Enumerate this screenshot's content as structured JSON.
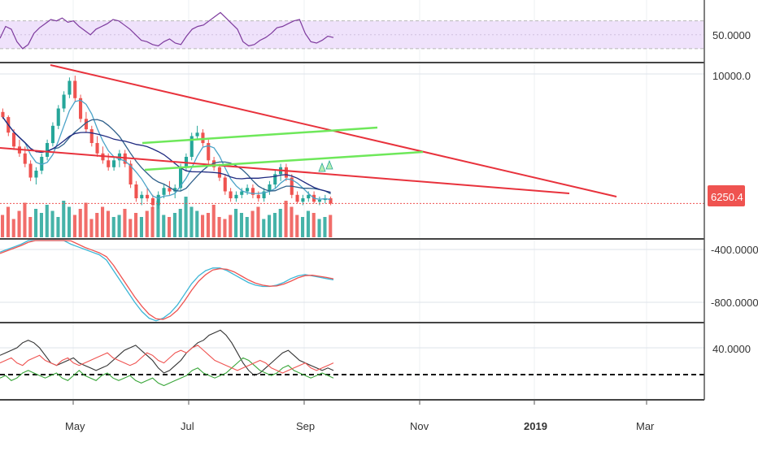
{
  "colors": {
    "bull": "#26a69a",
    "bear": "#ef5350",
    "trend_red": "#e8323c",
    "channel_green": "#6ee85a",
    "rsi_line": "#7e3b9e",
    "rsi_band": "#efe2fb",
    "ma_fast": "#4aa3c8",
    "ma_mid": "#2d5f8a",
    "ma_slow": "#1f2a80",
    "macd": "#3cb6d6",
    "signal": "#ef5350",
    "dmi_adx": "#333333",
    "dmi_plus": "#3aa63a",
    "dmi_minus": "#ef5350",
    "price_tag": "#ef5350"
  },
  "x_axis": {
    "labels": [
      "May",
      "Jul",
      "Sep",
      "Nov",
      "2019",
      "Mar"
    ]
  },
  "price_tag": "6250.4",
  "chart_data": [
    {
      "type": "line",
      "panel": "rsi",
      "y_tick_labels": [
        "50.0000"
      ],
      "band": [
        30,
        70
      ],
      "series": [
        {
          "values": [
            45,
            62,
            58,
            40,
            30,
            36,
            52,
            60,
            66,
            72,
            70,
            74,
            68,
            70,
            62,
            56,
            50,
            58,
            62,
            66,
            72,
            70,
            64,
            58,
            50,
            42,
            40,
            36,
            34,
            40,
            44,
            38,
            36,
            48,
            58,
            62,
            64,
            70,
            76,
            82,
            74,
            66,
            58,
            40,
            34,
            36,
            42,
            46,
            52,
            60,
            62,
            66,
            70,
            72,
            52,
            40,
            38,
            42,
            48,
            46
          ]
        }
      ]
    },
    {
      "type": "candlestick",
      "panel": "price",
      "y_tick_labels": [
        "10000.0"
      ],
      "last_price": "6250.4",
      "ohlc": [
        [
          8900,
          9000,
          8700,
          8750
        ],
        [
          8750,
          8800,
          8200,
          8300
        ],
        [
          8300,
          8400,
          7800,
          7900
        ],
        [
          7900,
          8100,
          7600,
          7700
        ],
        [
          7700,
          7900,
          7300,
          7400
        ],
        [
          7400,
          7500,
          6900,
          7000
        ],
        [
          7000,
          7300,
          6800,
          7200
        ],
        [
          7200,
          7700,
          7100,
          7600
        ],
        [
          7600,
          8100,
          7500,
          8000
        ],
        [
          8000,
          8600,
          7900,
          8500
        ],
        [
          8500,
          9100,
          8400,
          9000
        ],
        [
          9000,
          9500,
          8900,
          9400
        ],
        [
          9400,
          9900,
          9300,
          9800
        ],
        [
          9800,
          9950,
          9200,
          9300
        ],
        [
          9300,
          9400,
          8600,
          8700
        ],
        [
          8700,
          8900,
          8300,
          8400
        ],
        [
          8400,
          8500,
          7900,
          8000
        ],
        [
          8000,
          8200,
          7600,
          7700
        ],
        [
          7700,
          7900,
          7400,
          7500
        ],
        [
          7500,
          7700,
          7200,
          7300
        ],
        [
          7300,
          7600,
          7200,
          7500
        ],
        [
          7500,
          7800,
          7300,
          7700
        ],
        [
          7700,
          7800,
          7300,
          7400
        ],
        [
          7400,
          7500,
          6700,
          6800
        ],
        [
          6800,
          6900,
          6300,
          6400
        ],
        [
          6400,
          6600,
          6200,
          6500
        ],
        [
          6500,
          6700,
          6300,
          6400
        ],
        [
          6400,
          6500,
          6100,
          6200
        ],
        [
          6200,
          6600,
          6100,
          6500
        ],
        [
          6500,
          6800,
          6400,
          6700
        ],
        [
          6700,
          6900,
          6500,
          6600
        ],
        [
          6600,
          6800,
          6400,
          6700
        ],
        [
          6700,
          7400,
          6600,
          7300
        ],
        [
          7300,
          7700,
          7200,
          7600
        ],
        [
          7600,
          8300,
          7500,
          8200
        ],
        [
          8200,
          8500,
          8100,
          8300
        ],
        [
          8300,
          8400,
          7900,
          8000
        ],
        [
          8000,
          8100,
          7400,
          7500
        ],
        [
          7500,
          7600,
          7200,
          7300
        ],
        [
          7300,
          7400,
          6900,
          7000
        ],
        [
          7000,
          7100,
          6500,
          6600
        ],
        [
          6600,
          6700,
          6300,
          6400
        ],
        [
          6400,
          6600,
          6300,
          6500
        ],
        [
          6500,
          6700,
          6400,
          6600
        ],
        [
          6600,
          6800,
          6500,
          6700
        ],
        [
          6700,
          6800,
          6400,
          6500
        ],
        [
          6500,
          6600,
          6300,
          6400
        ],
        [
          6400,
          6700,
          6300,
          6600
        ],
        [
          6600,
          6900,
          6500,
          6800
        ],
        [
          6800,
          7200,
          6700,
          7100
        ],
        [
          7100,
          7400,
          6900,
          7300
        ],
        [
          7300,
          7400,
          6900,
          7000
        ],
        [
          7000,
          7100,
          6400,
          6500
        ],
        [
          6500,
          6600,
          6250,
          6300
        ],
        [
          6300,
          6500,
          6200,
          6400
        ],
        [
          6400,
          6600,
          6300,
          6500
        ],
        [
          6500,
          6600,
          6250,
          6300
        ],
        [
          6300,
          6450,
          6200,
          6350
        ],
        [
          6350,
          6500,
          6250,
          6400
        ],
        [
          6400,
          6450,
          6200,
          6250
        ]
      ],
      "volume": [
        22,
        30,
        18,
        26,
        34,
        20,
        28,
        24,
        32,
        26,
        20,
        36,
        30,
        22,
        28,
        34,
        18,
        24,
        30,
        26,
        20,
        22,
        28,
        18,
        24,
        20,
        26,
        30,
        36,
        22,
        20,
        24,
        28,
        40,
        30,
        26,
        22,
        24,
        32,
        20,
        18,
        22,
        28,
        24,
        20,
        26,
        30,
        18,
        22,
        24,
        28,
        36,
        30,
        22,
        20,
        26,
        24,
        18,
        20,
        22
      ]
    },
    {
      "type": "line",
      "panel": "macd",
      "y_tick_labels": [
        "-400.0000",
        "-800.0000"
      ],
      "series": [
        {
          "values": [
            -420,
            -400,
            -380,
            -360,
            -330,
            -310,
            -300,
            -300,
            -310,
            -330,
            -360,
            -380,
            -400,
            -420,
            -440,
            -480,
            -560,
            -640,
            -720,
            -800,
            -870,
            -920,
            -940,
            -920,
            -880,
            -820,
            -740,
            -660,
            -600,
            -560,
            -540,
            -540,
            -560,
            -590,
            -620,
            -650,
            -670,
            -680,
            -680,
            -670,
            -650,
            -620,
            -600,
            -590,
            -600,
            -610,
            -620,
            -630
          ]
        },
        {
          "values": [
            -430,
            -410,
            -390,
            -370,
            -345,
            -325,
            -310,
            -305,
            -305,
            -315,
            -335,
            -360,
            -385,
            -405,
            -425,
            -455,
            -520,
            -600,
            -680,
            -760,
            -830,
            -890,
            -925,
            -930,
            -905,
            -860,
            -790,
            -710,
            -640,
            -590,
            -555,
            -545,
            -550,
            -570,
            -600,
            -630,
            -655,
            -670,
            -678,
            -676,
            -662,
            -640,
            -615,
            -598,
            -595,
            -603,
            -612,
            -622
          ]
        }
      ]
    },
    {
      "type": "line",
      "panel": "dmi",
      "y_tick_labels": [
        "40.0000"
      ],
      "series": [
        {
          "values": [
            34,
            36,
            38,
            40,
            44,
            46,
            44,
            40,
            34,
            28,
            26,
            28,
            30,
            32,
            28,
            26,
            24,
            22,
            24,
            26,
            30,
            34,
            38,
            40,
            42,
            38,
            34,
            30,
            24,
            20,
            22,
            26,
            30,
            36,
            40,
            44,
            46,
            50,
            52,
            54,
            50,
            44,
            36,
            28,
            22,
            18,
            20,
            24,
            28,
            32,
            36,
            38,
            34,
            30,
            28,
            26,
            24,
            22,
            24,
            22
          ]
        },
        {
          "values": [
            16,
            18,
            14,
            16,
            20,
            22,
            20,
            18,
            16,
            18,
            20,
            16,
            14,
            18,
            22,
            18,
            16,
            14,
            18,
            20,
            16,
            14,
            16,
            18,
            14,
            12,
            14,
            16,
            12,
            10,
            12,
            14,
            16,
            18,
            22,
            24,
            20,
            18,
            16,
            18,
            20,
            24,
            28,
            32,
            30,
            26,
            22,
            20,
            18,
            20,
            24,
            26,
            22,
            20,
            18,
            16,
            18,
            20,
            18,
            16
          ]
        },
        {
          "values": [
            28,
            30,
            32,
            28,
            26,
            30,
            32,
            34,
            30,
            28,
            26,
            30,
            32,
            28,
            26,
            28,
            30,
            32,
            34,
            36,
            32,
            30,
            28,
            26,
            28,
            32,
            36,
            34,
            30,
            28,
            32,
            36,
            38,
            36,
            40,
            42,
            38,
            34,
            30,
            28,
            26,
            24,
            22,
            24,
            26,
            28,
            30,
            28,
            24,
            22,
            20,
            22,
            24,
            26,
            28,
            24,
            22,
            24,
            26,
            28
          ]
        }
      ]
    }
  ]
}
